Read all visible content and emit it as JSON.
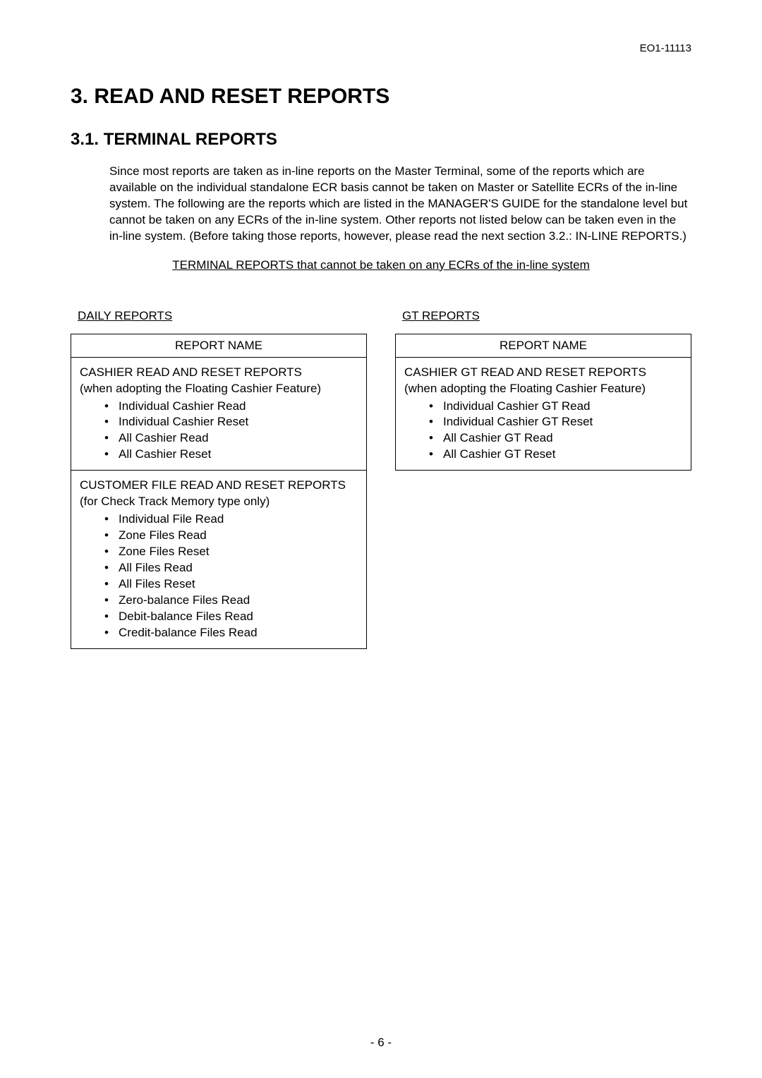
{
  "doc_id": "EO1-11113",
  "section_title": "3.   READ AND RESET REPORTS",
  "subsection_title": "3.1.  TERMINAL REPORTS",
  "intro_text": "Since most reports are taken as in-line reports on the Master Terminal, some of the reports which are available on the individual standalone ECR basis cannot be taken on Master or Satellite ECRs of the in-line system.  The following are the reports which are listed in the MANAGER'S GUIDE for the standalone level but cannot be taken on any ECRs of the in-line system.  Other reports not listed below can be taken even in the in-line system.  (Before taking those reports, however, please read the next section 3.2.: IN-LINE REPORTS.)",
  "subheading": "TERMINAL REPORTS that cannot be taken on any ECRs of the in-line system",
  "left": {
    "heading": "DAILY REPORTS",
    "table_header": "REPORT NAME",
    "cell1": {
      "title": "CASHIER READ AND RESET REPORTS",
      "note": "(when adopting the Floating Cashier Feature)",
      "items": [
        "Individual Cashier Read",
        "Individual Cashier Reset",
        "All Cashier Read",
        "All Cashier Reset"
      ]
    },
    "cell2": {
      "title": "CUSTOMER FILE READ AND RESET REPORTS",
      "note": "(for Check Track Memory type only)",
      "items": [
        "Individual File Read",
        "Zone Files Read",
        "Zone Files Reset",
        "All Files Read",
        "All Files Reset",
        "Zero-balance Files Read",
        "Debit-balance Files Read",
        "Credit-balance Files Read"
      ]
    }
  },
  "right": {
    "heading": "GT REPORTS",
    "table_header": "REPORT NAME",
    "cell1": {
      "title": "CASHIER GT READ AND RESET REPORTS",
      "note": "(when adopting the Floating Cashier Feature)",
      "items": [
        "Individual Cashier GT Read",
        "Individual Cashier GT Reset",
        "All Cashier GT Read",
        "All Cashier GT Reset"
      ]
    }
  },
  "page_number": "- 6 -"
}
